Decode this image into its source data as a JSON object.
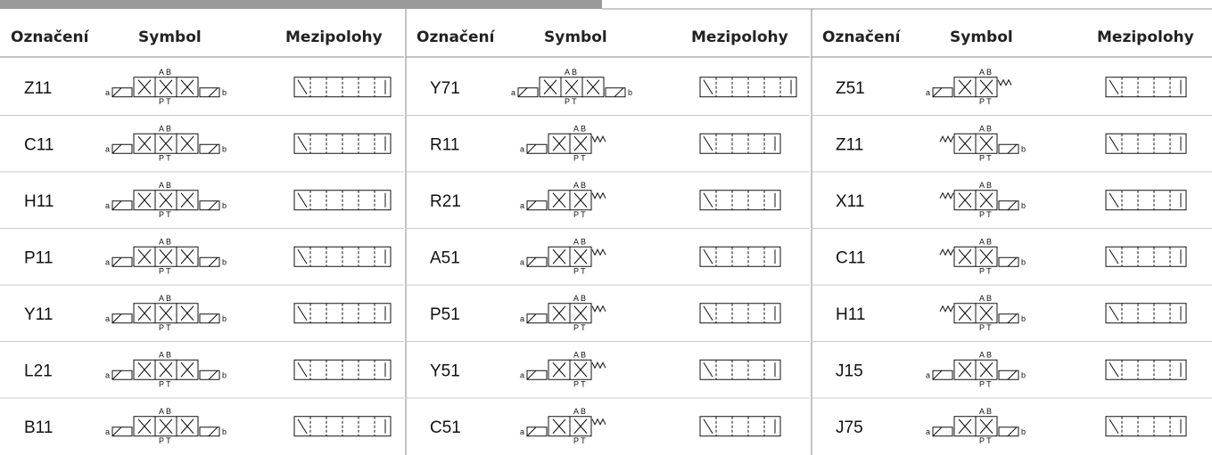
{
  "header": [
    "Označení",
    "Symbol",
    "Mezipolohy"
  ],
  "groups": [
    {
      "codes": [
        "Z11",
        "C11",
        "H11",
        "P11",
        "Y11",
        "L21",
        "B11"
      ]
    },
    {
      "codes": [
        "Y71",
        "R11",
        "R21",
        "A51",
        "P51",
        "Y51",
        "C51"
      ]
    },
    {
      "codes": [
        "Z51",
        "Z11",
        "X11",
        "C11",
        "H11",
        "J15",
        "J75"
      ]
    }
  ],
  "symbol_text": {
    "top": "A B",
    "bottom": "P T",
    "left": "a",
    "right": "b"
  }
}
